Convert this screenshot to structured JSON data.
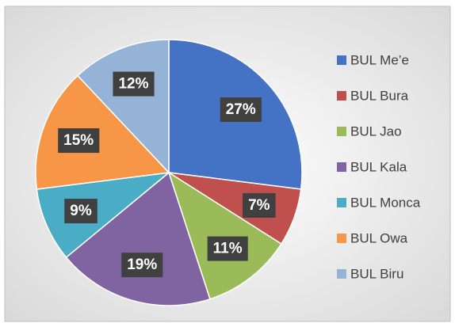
{
  "chart_data": {
    "type": "pie",
    "categories": [
      "BUL Me’e",
      "BUL Bura",
      "BUL Jao",
      "BUL Kala",
      "BUL Monca",
      "BUL Owa",
      "BUL Biru"
    ],
    "values": [
      27,
      7,
      11,
      19,
      9,
      15,
      12
    ],
    "value_labels": [
      "27%",
      "7%",
      "11%",
      "19%",
      "9%",
      "15%",
      "12%"
    ],
    "colors": [
      "#4472c4",
      "#c0504d",
      "#9bbb59",
      "#8064a2",
      "#4bacc6",
      "#f79646",
      "#95b3d7"
    ],
    "legend": "right"
  }
}
